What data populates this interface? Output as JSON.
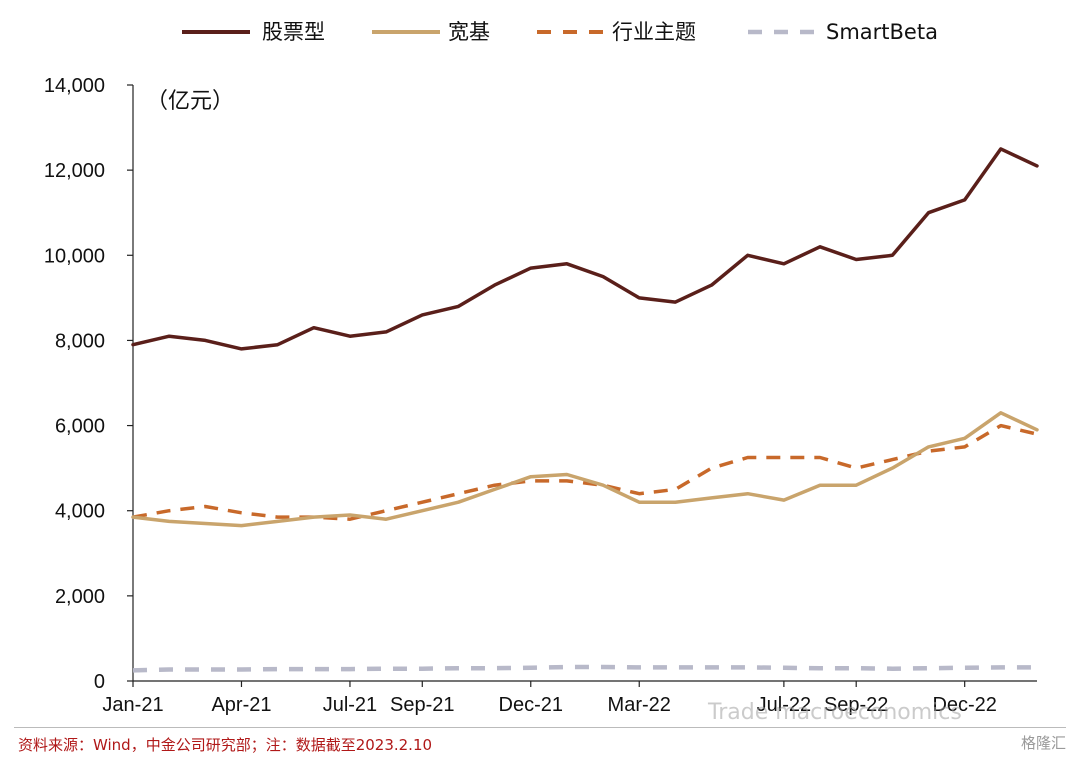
{
  "chart_data": {
    "type": "line",
    "title": "",
    "unit_label": "（亿元）",
    "xlabel": "",
    "ylabel": "",
    "ylim": [
      0,
      14000
    ],
    "yticks": [
      0,
      2000,
      4000,
      6000,
      8000,
      10000,
      12000,
      14000
    ],
    "ytick_labels": [
      "0",
      "2,000",
      "4,000",
      "6,000",
      "8,000",
      "10,000",
      "12,000",
      "14,000"
    ],
    "xlim": [
      "2021-01",
      "2023-02"
    ],
    "xticks": [
      "Jan-21",
      "Apr-21",
      "Jul-21",
      "Sep-21",
      "Dec-21",
      "Mar-22",
      "Jul-22",
      "Sep-22",
      "Dec-22"
    ],
    "xtick_months": [
      0,
      3,
      6,
      8,
      11,
      14,
      18,
      20,
      23
    ],
    "grid": false,
    "legend_position": "top",
    "x": [
      "2021-01",
      "2021-02",
      "2021-03",
      "2021-04",
      "2021-05",
      "2021-06",
      "2021-07",
      "2021-08",
      "2021-09",
      "2021-10",
      "2021-11",
      "2021-12",
      "2022-01",
      "2022-02",
      "2022-03",
      "2022-04",
      "2022-05",
      "2022-06",
      "2022-07",
      "2022-08",
      "2022-09",
      "2022-10",
      "2022-11",
      "2022-12",
      "2023-01",
      "2023-02"
    ],
    "series": [
      {
        "name": "股票型",
        "color": "#5a1f1a",
        "style": "solid",
        "values": [
          7900,
          8100,
          8000,
          7800,
          7900,
          8300,
          8100,
          8200,
          8600,
          8800,
          9300,
          9700,
          9800,
          9500,
          9000,
          8900,
          9300,
          10000,
          9800,
          10200,
          9900,
          10000,
          11000,
          11300,
          12500,
          12100
        ]
      },
      {
        "name": "宽基",
        "color": "#c9a46c",
        "style": "solid",
        "values": [
          3850,
          3750,
          3700,
          3650,
          3750,
          3850,
          3900,
          3800,
          4000,
          4200,
          4500,
          4800,
          4850,
          4600,
          4200,
          4200,
          4300,
          4400,
          4250,
          4600,
          4600,
          5000,
          5500,
          5700,
          6300,
          5900
        ]
      },
      {
        "name": "行业主题",
        "color": "#c8692a",
        "style": "dashed",
        "values": [
          3850,
          4000,
          4100,
          3950,
          3850,
          3850,
          3800,
          4000,
          4200,
          4400,
          4600,
          4700,
          4700,
          4600,
          4400,
          4500,
          5000,
          5250,
          5250,
          5250,
          5000,
          5200,
          5400,
          5500,
          6000,
          5800
        ]
      },
      {
        "name": "SmartBeta",
        "color": "#b8b9c9",
        "style": "dashed",
        "values": [
          250,
          270,
          270,
          270,
          280,
          280,
          280,
          290,
          290,
          300,
          300,
          310,
          330,
          330,
          320,
          320,
          320,
          320,
          310,
          300,
          300,
          290,
          300,
          310,
          320,
          320
        ]
      }
    ]
  },
  "source_note": "资料来源：Wind，中金公司研究部；注：数据截至2023.2.10",
  "watermark": "Trade macroeconomics",
  "brand_badge": "格隆汇"
}
